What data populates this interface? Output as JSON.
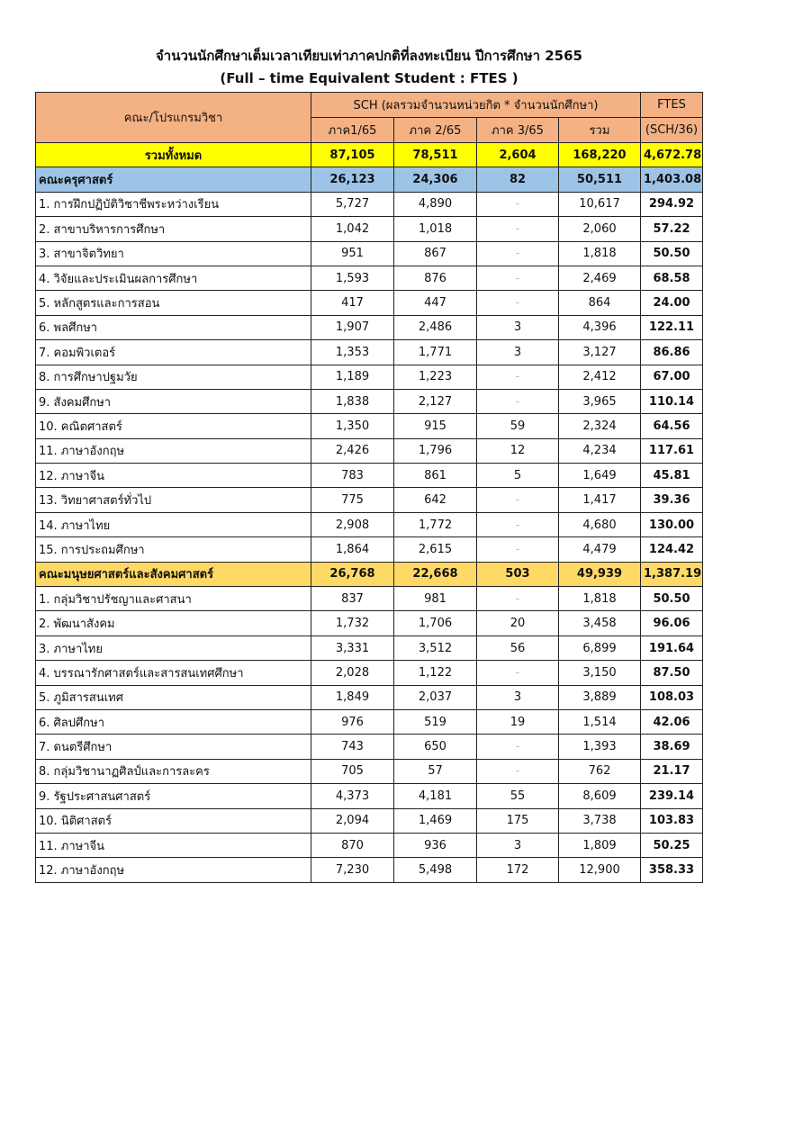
{
  "title": "จำนวนนักศึกษาเต็มเวลาเทียบเท่าภาคปกติที่ลงทะเบียน  ปีการศึกษา 2565",
  "subtitle": "(Full – time Equivalent Student : FTES )",
  "header": {
    "program": "คณะ/โปรแกรมวิชา",
    "sch": "SCH (ผลรวมจำนวนหน่วยกิต * จำนวนนักศึกษา)",
    "ftes": "FTES",
    "ftes_formula": "(SCH/36)",
    "cols": [
      "ภาค1/65",
      "ภาค 2/65",
      "ภาค 3/65",
      "รวม"
    ]
  },
  "colors": {
    "header": "#f4b183",
    "total": "#ffff00",
    "faculty1": "#9dc3e6",
    "faculty2": "#ffd966"
  },
  "total": {
    "name": "รวมทั้งหมด",
    "values": [
      "87,105",
      "78,511",
      "2,604",
      "168,220",
      "4,672.78"
    ]
  },
  "faculties": [
    {
      "name": "คณะครุศาสตร์",
      "values": [
        "26,123",
        "24,306",
        "82",
        "50,511",
        "1,403.08"
      ],
      "rows": [
        {
          "name": "1. การฝึกปฏิบัติวิชาชีพระหว่างเรียน",
          "values": [
            "5,727",
            "4,890",
            "-",
            "10,617",
            "294.92"
          ]
        },
        {
          "name": "2. สาขาบริหารการศึกษา",
          "values": [
            "1,042",
            "1,018",
            "-",
            "2,060",
            "57.22"
          ]
        },
        {
          "name": "3. สาขาจิตวิทยา",
          "values": [
            "951",
            "867",
            "-",
            "1,818",
            "50.50"
          ]
        },
        {
          "name": "4. วิจัยและประเมินผลการศึกษา",
          "values": [
            "1,593",
            "876",
            "-",
            "2,469",
            "68.58"
          ]
        },
        {
          "name": "5. หลักสูตรและการสอน",
          "values": [
            "417",
            "447",
            "-",
            "864",
            "24.00"
          ]
        },
        {
          "name": "6. พลศึกษา",
          "values": [
            "1,907",
            "2,486",
            "3",
            "4,396",
            "122.11"
          ]
        },
        {
          "name": "7. คอมพิวเตอร์",
          "values": [
            "1,353",
            "1,771",
            "3",
            "3,127",
            "86.86"
          ]
        },
        {
          "name": "8. การศึกษาปฐมวัย",
          "values": [
            "1,189",
            "1,223",
            "-",
            "2,412",
            "67.00"
          ]
        },
        {
          "name": "9. สังคมศึกษา",
          "values": [
            "1,838",
            "2,127",
            "-",
            "3,965",
            "110.14"
          ]
        },
        {
          "name": "10. คณิตศาสตร์",
          "values": [
            "1,350",
            "915",
            "59",
            "2,324",
            "64.56"
          ]
        },
        {
          "name": "11. ภาษาอังกฤษ",
          "values": [
            "2,426",
            "1,796",
            "12",
            "4,234",
            "117.61"
          ]
        },
        {
          "name": "12. ภาษาจีน",
          "values": [
            "783",
            "861",
            "5",
            "1,649",
            "45.81"
          ]
        },
        {
          "name": "13. วิทยาศาสตร์ทั่วไป",
          "values": [
            "775",
            "642",
            "-",
            "1,417",
            "39.36"
          ]
        },
        {
          "name": "14. ภาษาไทย",
          "values": [
            "2,908",
            "1,772",
            "-",
            "4,680",
            "130.00"
          ]
        },
        {
          "name": "15. การประถมศึกษา",
          "values": [
            "1,864",
            "2,615",
            "-",
            "4,479",
            "124.42"
          ]
        }
      ]
    },
    {
      "name": "คณะมนุษยศาสตร์และสังคมศาสตร์",
      "values": [
        "26,768",
        "22,668",
        "503",
        "49,939",
        "1,387.19"
      ],
      "rows": [
        {
          "name": "1. กลุ่มวิชาปรัชญาและศาสนา",
          "values": [
            "837",
            "981",
            "-",
            "1,818",
            "50.50"
          ]
        },
        {
          "name": "2. พัฒนาสังคม",
          "values": [
            "1,732",
            "1,706",
            "20",
            "3,458",
            "96.06"
          ]
        },
        {
          "name": "3. ภาษาไทย",
          "values": [
            "3,331",
            "3,512",
            "56",
            "6,899",
            "191.64"
          ]
        },
        {
          "name": "4. บรรณารักศาสตร์และสารสนเทศศึกษา",
          "values": [
            "2,028",
            "1,122",
            "-",
            "3,150",
            "87.50"
          ]
        },
        {
          "name": "5. ภูมิสารสนเทศ",
          "values": [
            "1,849",
            "2,037",
            "3",
            "3,889",
            "108.03"
          ]
        },
        {
          "name": "6. ศิลปศึกษา",
          "values": [
            "976",
            "519",
            "19",
            "1,514",
            "42.06"
          ]
        },
        {
          "name": "7. ดนตรีศึกษา",
          "values": [
            "743",
            "650",
            "-",
            "1,393",
            "38.69"
          ]
        },
        {
          "name": "8. กลุ่มวิชานาฏศิลป์และการละคร",
          "values": [
            "705",
            "57",
            "-",
            "762",
            "21.17"
          ]
        },
        {
          "name": "9. รัฐประศาสนศาสตร์",
          "values": [
            "4,373",
            "4,181",
            "55",
            "8,609",
            "239.14"
          ]
        },
        {
          "name": "10. นิติศาสตร์",
          "values": [
            "2,094",
            "1,469",
            "175",
            "3,738",
            "103.83"
          ]
        },
        {
          "name": "11. ภาษาจีน",
          "values": [
            "870",
            "936",
            "3",
            "1,809",
            "50.25"
          ]
        },
        {
          "name": "12. ภาษาอังกฤษ",
          "values": [
            "7,230",
            "5,498",
            "172",
            "12,900",
            "358.33"
          ]
        }
      ]
    }
  ]
}
